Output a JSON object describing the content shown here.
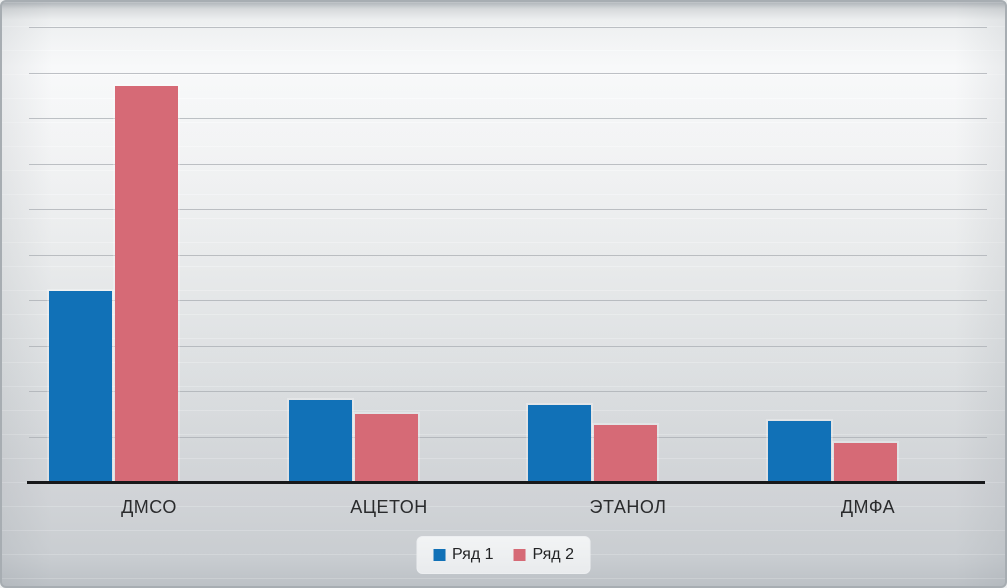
{
  "chart_data": {
    "type": "bar",
    "title": "",
    "categories": [
      "ДМСО",
      "АЦЕТОН",
      "ЭТАНОЛ",
      "ДМФА"
    ],
    "series": [
      {
        "name": "Ряд 1",
        "color": "#1171b7",
        "values": [
          4.2,
          1.8,
          1.7,
          1.35
        ]
      },
      {
        "name": "Ряд 2",
        "color": "#d66a76",
        "values": [
          8.7,
          1.5,
          1.25,
          0.85
        ]
      }
    ],
    "xlabel": "",
    "ylabel": "",
    "ylim": [
      0,
      10
    ],
    "gridline_step": 1,
    "grid": true,
    "y_tick_labels_visible": false,
    "legend_position": "bottom-center",
    "colors": {
      "gridline": "#a9aeb3",
      "axis": "#17181a",
      "label_text": "#2a2b2d"
    }
  }
}
